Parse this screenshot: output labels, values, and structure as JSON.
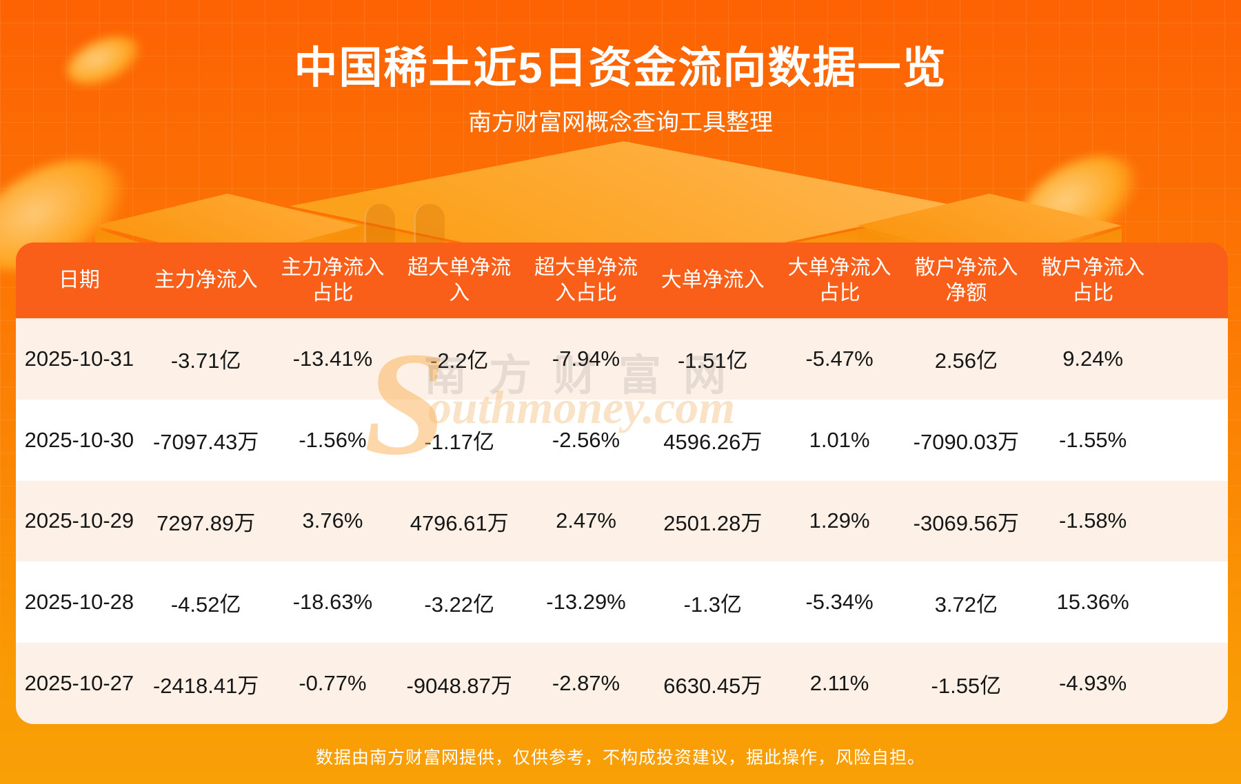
{
  "title": "中国稀土近5日资金流向数据一览",
  "subtitle": "南方财富网概念查询工具整理",
  "chart_data": {
    "type": "table",
    "title": "中国稀土近5日资金流向数据一览",
    "columns": [
      "日期",
      "主力净流入",
      "主力净流入占比",
      "超大单净流入",
      "超大单净流入占比",
      "大单净流入",
      "大单净流入占比",
      "散户净流入净额",
      "散户净流入占比"
    ],
    "columns_display": [
      "日期",
      "主力净流入",
      "主力净流入\n占比",
      "超大单净流\n入",
      "超大单净流\n入占比",
      "大单净流入",
      "大单净流入\n占比",
      "散户净流入\n净额",
      "散户净流入\n占比"
    ],
    "rows": [
      [
        "2025-10-31",
        "-3.71亿",
        "-13.41%",
        "-2.2亿",
        "-7.94%",
        "-1.51亿",
        "-5.47%",
        "2.56亿",
        "9.24%"
      ],
      [
        "2025-10-30",
        "-7097.43万",
        "-1.56%",
        "-1.17亿",
        "-2.56%",
        "4596.26万",
        "1.01%",
        "-7090.03万",
        "-1.55%"
      ],
      [
        "2025-10-29",
        "7297.89万",
        "3.76%",
        "4796.61万",
        "2.47%",
        "2501.28万",
        "1.29%",
        "-3069.56万",
        "-1.58%"
      ],
      [
        "2025-10-28",
        "-4.52亿",
        "-18.63%",
        "-3.22亿",
        "-13.29%",
        "-1.3亿",
        "-5.34%",
        "3.72亿",
        "15.36%"
      ],
      [
        "2025-10-27",
        "-2418.41万",
        "-0.77%",
        "-9048.87万",
        "-2.87%",
        "6630.45万",
        "2.11%",
        "-1.55亿",
        "-4.93%"
      ]
    ]
  },
  "watermark": {
    "s": "S",
    "cn": "南方财富网",
    "en": "outhmoney.com"
  },
  "footer": "数据由南方财富网提供，仅供参考，不构成投资建议，据此操作，风险自担。",
  "colors": {
    "header_bg": "#fa5f19",
    "row_alt_bg": "#fdf1e7",
    "row_white_bg": "#ffffff",
    "bg_top": "#fd6203",
    "bg_bottom": "#f9a006",
    "text_white": "#ffffff",
    "text_dark": "#161616"
  }
}
